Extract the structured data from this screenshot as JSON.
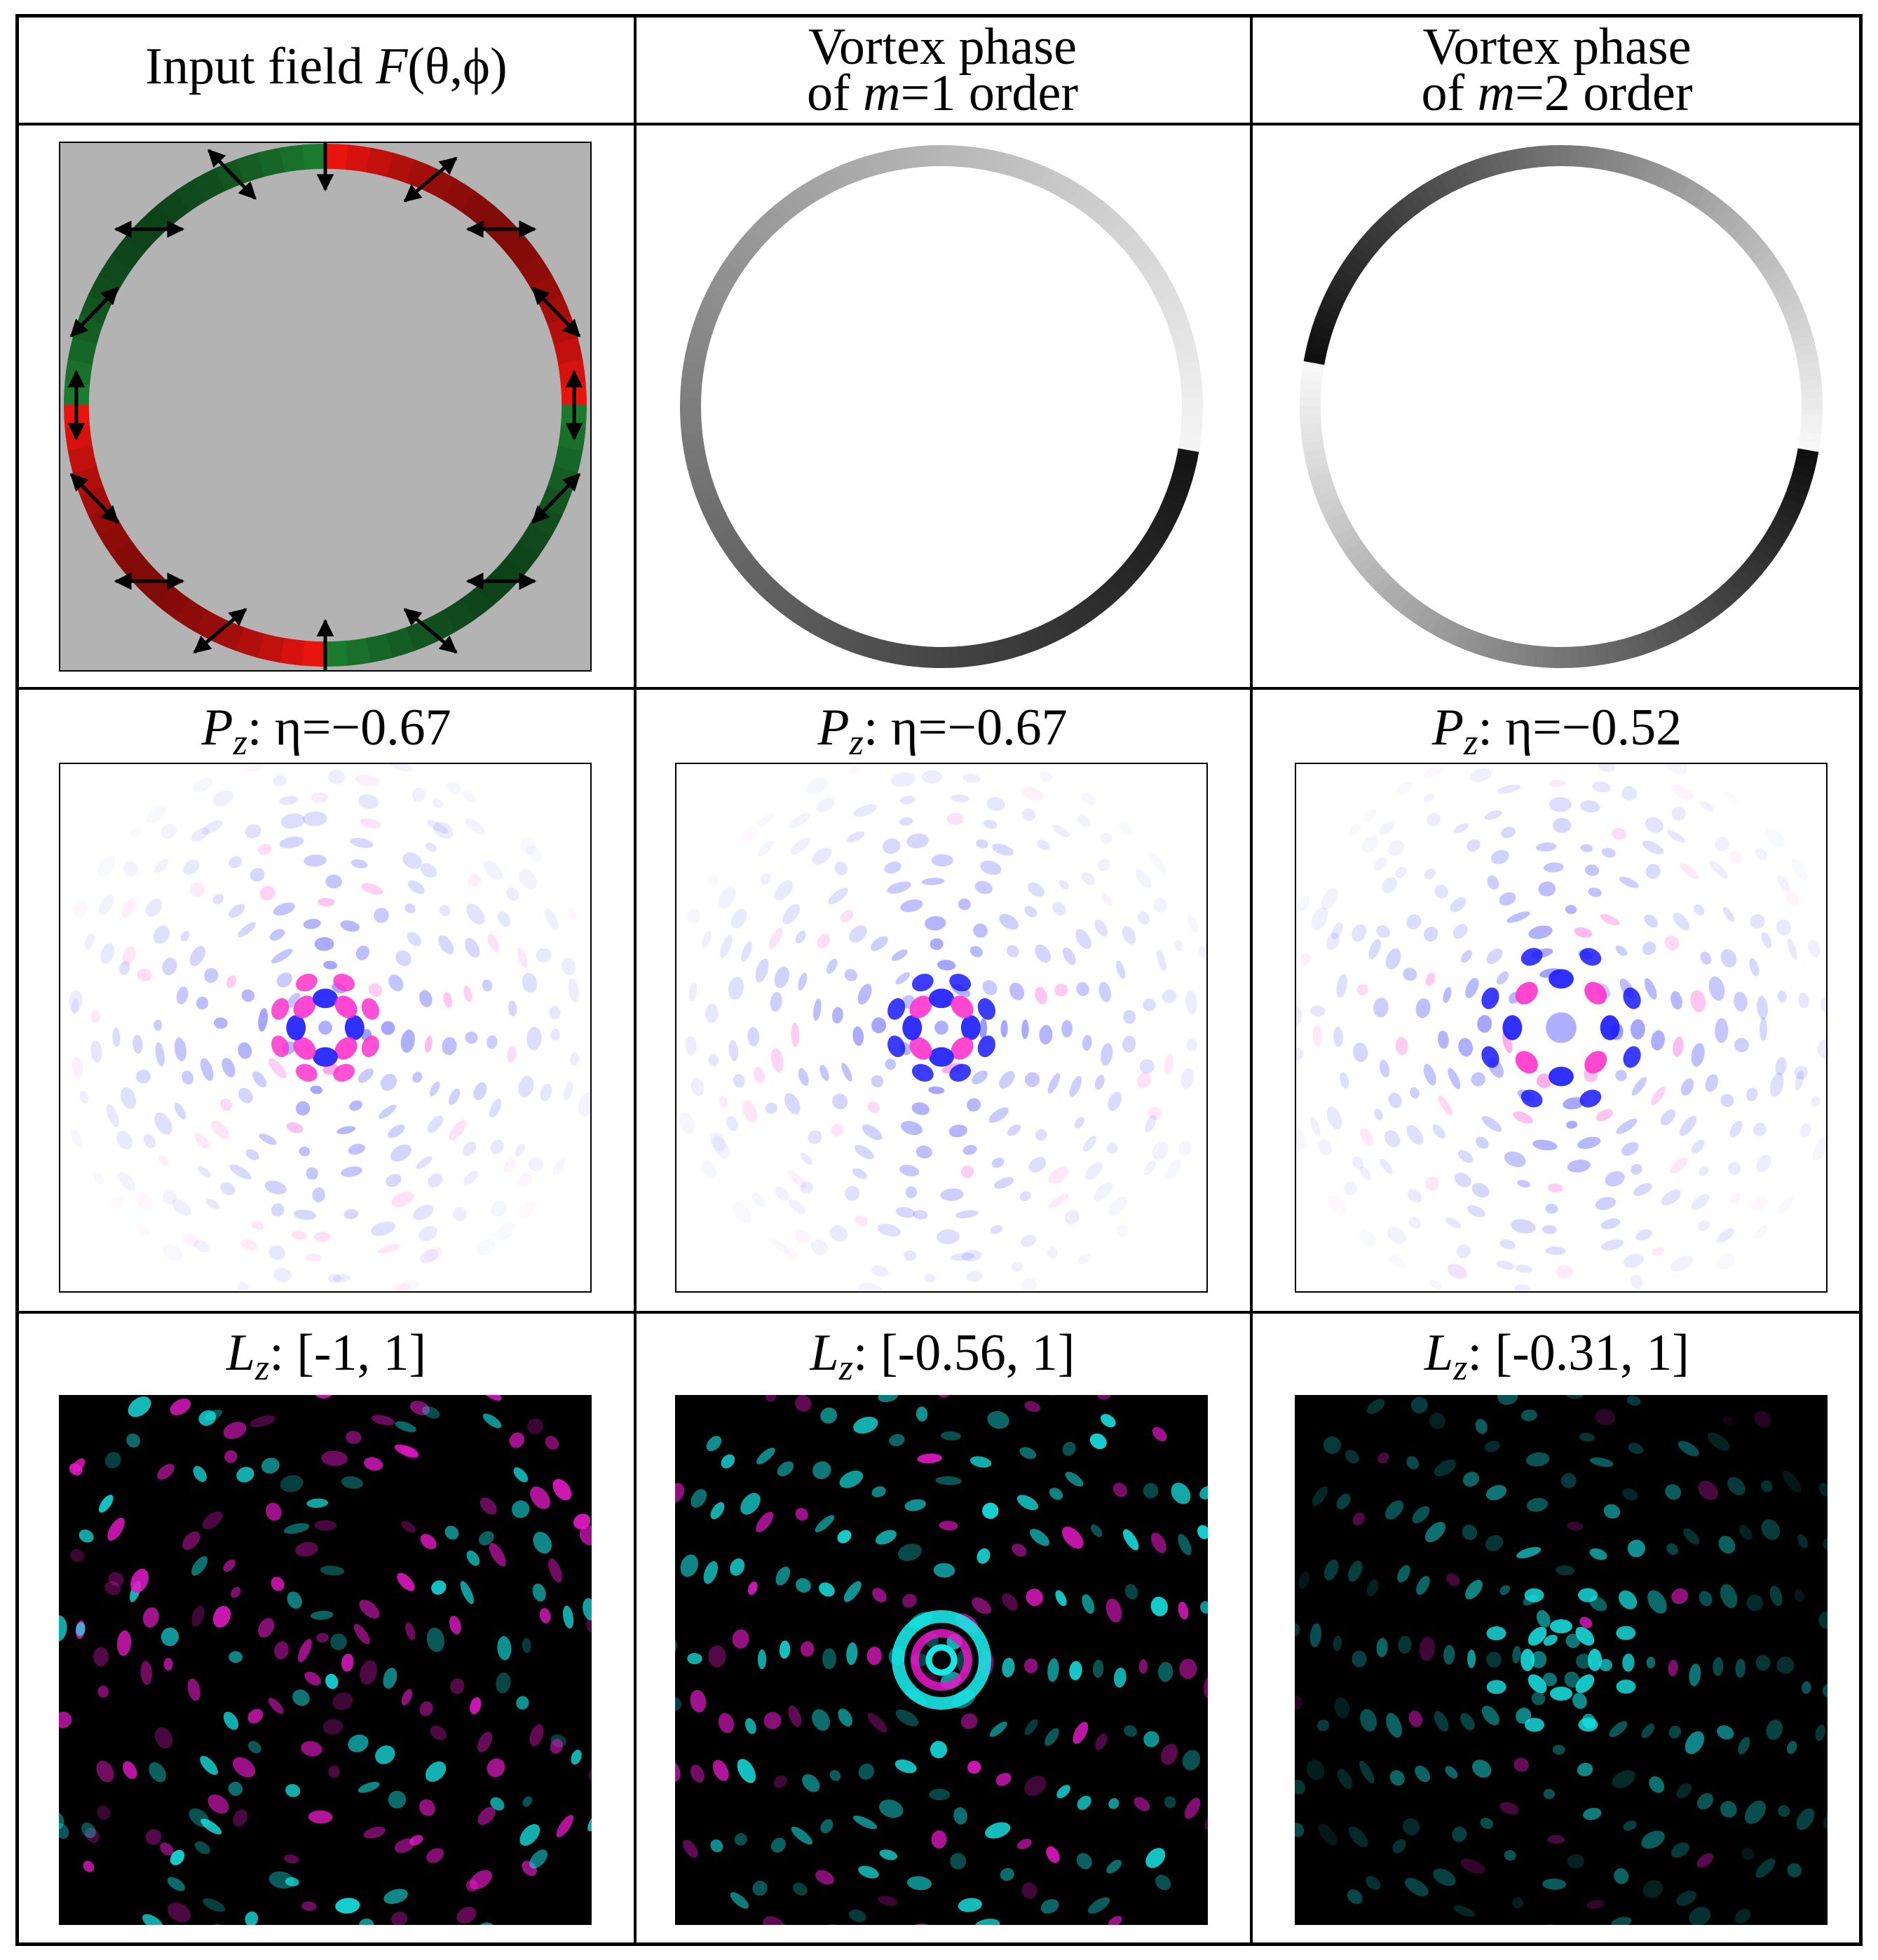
{
  "headers": {
    "col1": {
      "text": "Input field ",
      "italic": "F",
      "rest": "(θ,ϕ)"
    },
    "col2": {
      "line1": "Vortex phase",
      "pre": "of ",
      "italic": "m",
      "post": "=1 order"
    },
    "col3": {
      "line1": "Vortex phase",
      "pre": "of ",
      "italic": "m",
      "post": "=2 order"
    }
  },
  "pz_row": {
    "symbol": "P",
    "subscript": "z",
    "labels": [
      ": η=−0.67",
      ": η=−0.67",
      ": η=−0.52"
    ]
  },
  "lz_row": {
    "symbol": "L",
    "subscript": "z",
    "labels": [
      ":  [-1, 1]",
      ":  [-0.56, 1]",
      ":  [-0.31, 1]"
    ]
  },
  "colors": {
    "panel_gray": "#b3b3b3",
    "ring_green": "#1a7a2e",
    "ring_red": "#e8140e",
    "pz_blue": "#1a1aff",
    "pz_magenta": "#ff33cc",
    "lz_cyan": "#19e6e6",
    "lz_magenta": "#e619c8",
    "lz_background": "#000000"
  }
}
